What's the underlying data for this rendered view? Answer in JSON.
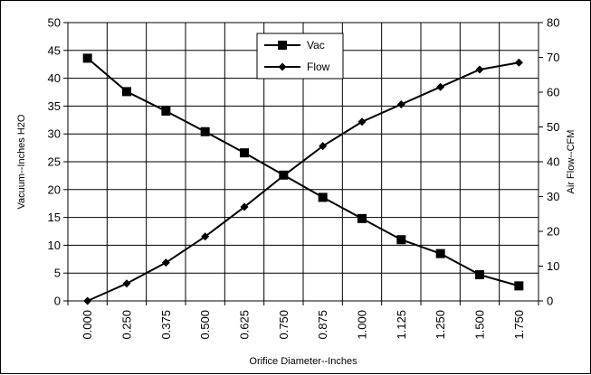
{
  "chart_data": {
    "type": "line",
    "title": "",
    "xlabel": "Orifice Diameter--Inches",
    "ylabel": "Vacuum--Inches H2O",
    "y2label": "Air Flow--CFM",
    "categories": [
      "0.000",
      "0.250",
      "0.375",
      "0.500",
      "0.625",
      "0.750",
      "0.875",
      "1.000",
      "1.125",
      "1.250",
      "1.500",
      "1.750"
    ],
    "ylim": [
      0,
      50
    ],
    "yticks": [
      0,
      5,
      10,
      15,
      20,
      25,
      30,
      35,
      40,
      45,
      50
    ],
    "y2lim": [
      0,
      80
    ],
    "y2ticks": [
      0,
      10,
      20,
      30,
      40,
      50,
      60,
      70,
      80
    ],
    "grid": true,
    "legend_position": "top-center",
    "series": [
      {
        "name": "Vac",
        "axis": "left",
        "marker": "square",
        "values": [
          43.6,
          37.6,
          34.1,
          30.4,
          26.6,
          22.6,
          18.6,
          14.8,
          11.0,
          8.5,
          4.7,
          2.7
        ]
      },
      {
        "name": "Flow",
        "axis": "right",
        "marker": "diamond",
        "values": [
          0,
          5,
          11,
          18.5,
          27,
          36,
          44.5,
          51.5,
          56.5,
          61.5,
          66.5,
          68.5
        ]
      }
    ],
    "colors": {
      "line": "#000000",
      "grid": "#000000",
      "background": "#ffffff"
    }
  }
}
